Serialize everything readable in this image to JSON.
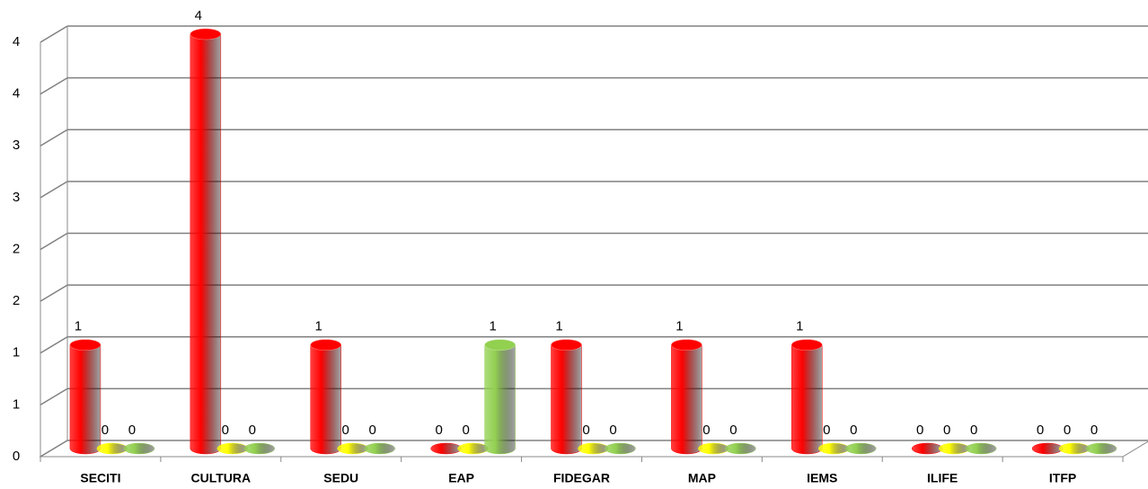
{
  "chart_data": {
    "type": "bar3d",
    "categories": [
      "SECITI",
      "CULTURA",
      "SEDU",
      "EAP",
      "FIDEGAR",
      "MAP",
      "IEMS",
      "ILIFE",
      "ITFP"
    ],
    "series": [
      {
        "color": "#ff0000",
        "values": [
          1,
          4,
          1,
          0,
          1,
          1,
          1,
          0,
          0
        ]
      },
      {
        "color": "#ffff00",
        "values": [
          0,
          0,
          0,
          0,
          0,
          0,
          0,
          0,
          0
        ]
      },
      {
        "color": "#92d050",
        "values": [
          0,
          0,
          0,
          1,
          0,
          0,
          0,
          0,
          0
        ]
      }
    ],
    "ylim": [
      0,
      4
    ],
    "yticks": [
      0,
      {
        "value": 0.5,
        "label": "1"
      },
      1,
      {
        "value": 1.5,
        "label": "2"
      },
      2,
      {
        "value": 2.5,
        "label": "3"
      },
      3,
      {
        "value": 3.5,
        "label": "4"
      },
      4
    ],
    "grid": true
  }
}
